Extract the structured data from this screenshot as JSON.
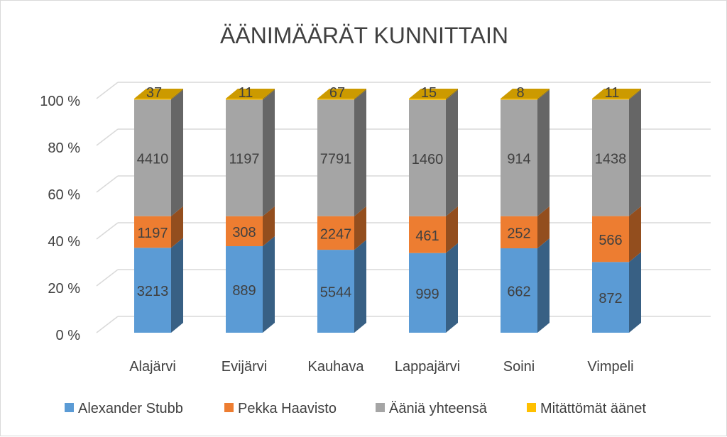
{
  "chart_data": {
    "type": "bar",
    "subtype": "stacked-100-percent-3d",
    "title": "ÄÄNIMÄÄRÄT KUNNITTAIN",
    "categories": [
      "Alajärvi",
      "Evijärvi",
      "Kauhava",
      "Lappajärvi",
      "Soini",
      "Vimpeli"
    ],
    "series": [
      {
        "name": "Alexander Stubb",
        "color": "#5b9bd5",
        "values": [
          3213,
          889,
          5544,
          999,
          662,
          872
        ]
      },
      {
        "name": "Pekka Haavisto",
        "color": "#ed7d31",
        "values": [
          1197,
          308,
          2247,
          461,
          252,
          566
        ]
      },
      {
        "name": "Ääniä yhteensä",
        "color": "#a5a5a5",
        "values": [
          4410,
          1197,
          7791,
          1460,
          914,
          1438
        ]
      },
      {
        "name": "Mitättömät äänet",
        "color": "#ffc000",
        "values": [
          37,
          11,
          67,
          15,
          8,
          11
        ]
      }
    ],
    "y_ticks": [
      "0 %",
      "20 %",
      "40 %",
      "60 %",
      "80 %",
      "100 %"
    ],
    "ylim": [
      0,
      100
    ],
    "grid": true,
    "data_labels": true,
    "legend": "bottom"
  }
}
